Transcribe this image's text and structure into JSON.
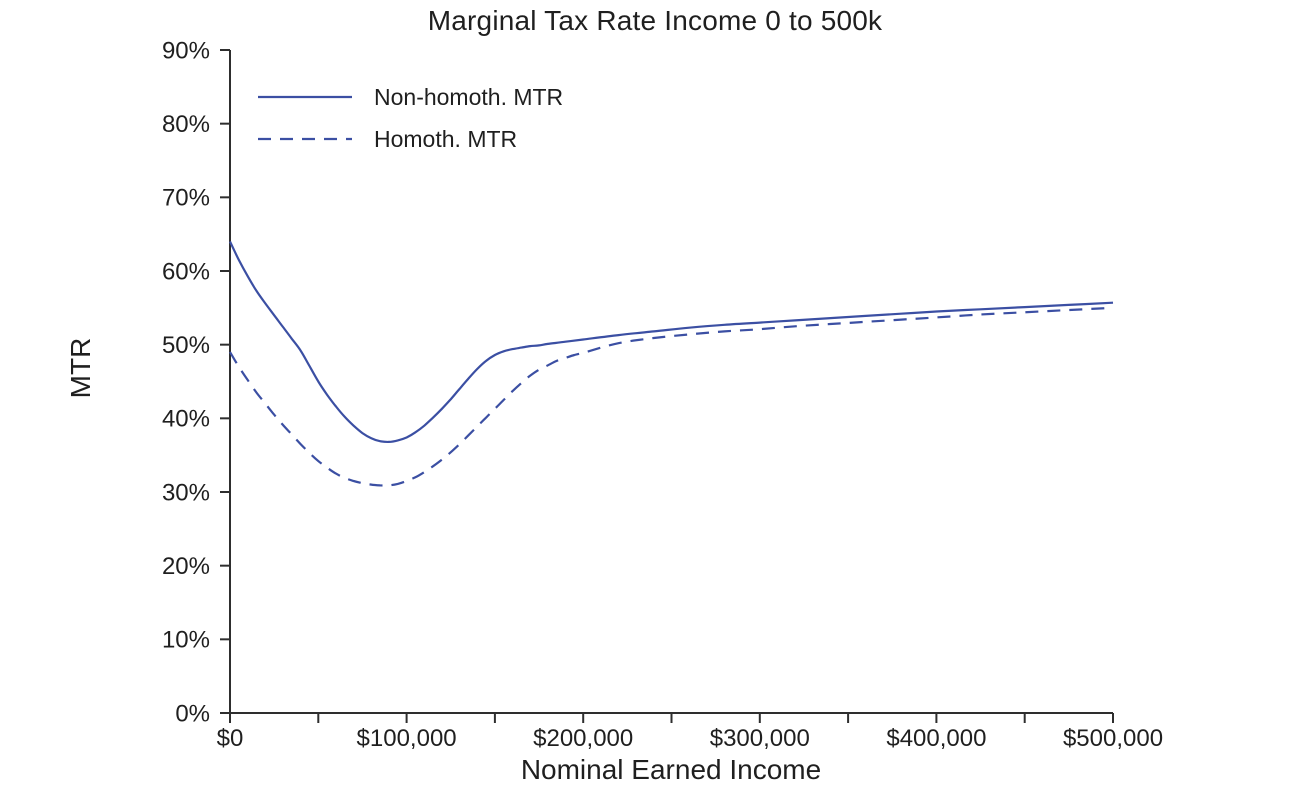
{
  "colors": {
    "line": "#3b4fa3",
    "text": "#1f1f1f",
    "axis": "#2e2e2e",
    "background": "#ffffff"
  },
  "chart_data": {
    "type": "line",
    "title": "Marginal Tax Rate Income 0 to 500k",
    "xlabel": "Nominal Earned Income",
    "ylabel": "MTR",
    "xlim": [
      0,
      500000
    ],
    "ylim": [
      0,
      90
    ],
    "grid": false,
    "legend_position": "upper-left",
    "y_ticks": [
      {
        "value": 0,
        "label": "0%"
      },
      {
        "value": 10,
        "label": "10%"
      },
      {
        "value": 20,
        "label": "20%"
      },
      {
        "value": 30,
        "label": "30%"
      },
      {
        "value": 40,
        "label": "40%"
      },
      {
        "value": 50,
        "label": "50%"
      },
      {
        "value": 60,
        "label": "60%"
      },
      {
        "value": 70,
        "label": "70%"
      },
      {
        "value": 80,
        "label": "80%"
      },
      {
        "value": 90,
        "label": "90%"
      }
    ],
    "x_major_ticks": [
      {
        "value": 0,
        "label": "$0"
      },
      {
        "value": 100000,
        "label": "$100,000"
      },
      {
        "value": 200000,
        "label": "$200,000"
      },
      {
        "value": 300000,
        "label": "$300,000"
      },
      {
        "value": 400000,
        "label": "$400,000"
      },
      {
        "value": 500000,
        "label": "$500,000"
      }
    ],
    "x_minor_ticks": [
      50000,
      150000,
      250000,
      350000,
      450000
    ],
    "series": [
      {
        "name": "Non-homoth. MTR",
        "style": "solid",
        "points": [
          [
            0,
            64.0
          ],
          [
            5000,
            61.5
          ],
          [
            10000,
            59.3
          ],
          [
            15000,
            57.3
          ],
          [
            20000,
            55.6
          ],
          [
            25000,
            54.0
          ],
          [
            30000,
            52.4
          ],
          [
            35000,
            50.8
          ],
          [
            40000,
            49.2
          ],
          [
            45000,
            47.1
          ],
          [
            50000,
            45.0
          ],
          [
            55000,
            43.2
          ],
          [
            60000,
            41.6
          ],
          [
            65000,
            40.2
          ],
          [
            70000,
            39.0
          ],
          [
            75000,
            38.0
          ],
          [
            80000,
            37.3
          ],
          [
            85000,
            36.9
          ],
          [
            90000,
            36.8
          ],
          [
            95000,
            37.0
          ],
          [
            100000,
            37.4
          ],
          [
            105000,
            38.1
          ],
          [
            110000,
            39.0
          ],
          [
            115000,
            40.1
          ],
          [
            120000,
            41.3
          ],
          [
            125000,
            42.6
          ],
          [
            130000,
            44.0
          ],
          [
            135000,
            45.4
          ],
          [
            140000,
            46.7
          ],
          [
            145000,
            47.8
          ],
          [
            150000,
            48.6
          ],
          [
            155000,
            49.1
          ],
          [
            160000,
            49.4
          ],
          [
            165000,
            49.6
          ],
          [
            170000,
            49.8
          ],
          [
            175000,
            49.9
          ],
          [
            180000,
            50.1
          ],
          [
            190000,
            50.4
          ],
          [
            200000,
            50.7
          ],
          [
            220000,
            51.3
          ],
          [
            240000,
            51.8
          ],
          [
            260000,
            52.3
          ],
          [
            280000,
            52.7
          ],
          [
            300000,
            53.0
          ],
          [
            320000,
            53.3
          ],
          [
            340000,
            53.6
          ],
          [
            360000,
            53.9
          ],
          [
            380000,
            54.2
          ],
          [
            400000,
            54.5
          ],
          [
            425000,
            54.8
          ],
          [
            450000,
            55.1
          ],
          [
            475000,
            55.4
          ],
          [
            500000,
            55.7
          ]
        ]
      },
      {
        "name": "Homoth. MTR",
        "style": "dashed",
        "points": [
          [
            0,
            49.0
          ],
          [
            5000,
            47.0
          ],
          [
            10000,
            45.2
          ],
          [
            15000,
            43.5
          ],
          [
            20000,
            42.0
          ],
          [
            25000,
            40.5
          ],
          [
            30000,
            39.1
          ],
          [
            35000,
            37.8
          ],
          [
            40000,
            36.5
          ],
          [
            45000,
            35.3
          ],
          [
            50000,
            34.2
          ],
          [
            55000,
            33.3
          ],
          [
            60000,
            32.5
          ],
          [
            65000,
            31.9
          ],
          [
            70000,
            31.5
          ],
          [
            75000,
            31.2
          ],
          [
            80000,
            31.0
          ],
          [
            85000,
            30.9
          ],
          [
            90000,
            30.9
          ],
          [
            95000,
            31.1
          ],
          [
            100000,
            31.5
          ],
          [
            105000,
            32.0
          ],
          [
            110000,
            32.7
          ],
          [
            115000,
            33.5
          ],
          [
            120000,
            34.4
          ],
          [
            125000,
            35.4
          ],
          [
            130000,
            36.5
          ],
          [
            135000,
            37.7
          ],
          [
            140000,
            38.9
          ],
          [
            145000,
            40.1
          ],
          [
            150000,
            41.3
          ],
          [
            155000,
            42.5
          ],
          [
            160000,
            43.7
          ],
          [
            165000,
            44.8
          ],
          [
            170000,
            45.8
          ],
          [
            175000,
            46.6
          ],
          [
            180000,
            47.2
          ],
          [
            185000,
            47.8
          ],
          [
            190000,
            48.2
          ],
          [
            195000,
            48.6
          ],
          [
            200000,
            48.9
          ],
          [
            220000,
            50.2
          ],
          [
            240000,
            50.9
          ],
          [
            260000,
            51.4
          ],
          [
            280000,
            51.8
          ],
          [
            300000,
            52.1
          ],
          [
            320000,
            52.5
          ],
          [
            340000,
            52.8
          ],
          [
            360000,
            53.1
          ],
          [
            380000,
            53.4
          ],
          [
            400000,
            53.7
          ],
          [
            425000,
            54.1
          ],
          [
            450000,
            54.4
          ],
          [
            475000,
            54.7
          ],
          [
            500000,
            55.0
          ]
        ]
      }
    ]
  }
}
